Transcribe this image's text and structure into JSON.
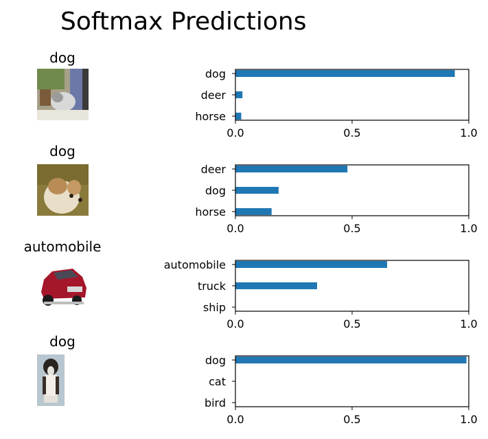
{
  "title": "Softmax Predictions",
  "chart_data": [
    {
      "type": "bar",
      "orientation": "horizontal",
      "image_label": "dog",
      "image_description": "dog-photo",
      "categories": [
        "dog",
        "deer",
        "horse"
      ],
      "values": [
        0.94,
        0.03,
        0.025
      ],
      "xlim": [
        0,
        1.0
      ],
      "xticks": [
        "0.0",
        "0.5",
        "1.0"
      ],
      "bar_color": "#1f77b4",
      "grid": false
    },
    {
      "type": "bar",
      "orientation": "horizontal",
      "image_label": "dog",
      "image_description": "dog-photo",
      "categories": [
        "deer",
        "dog",
        "horse"
      ],
      "values": [
        0.48,
        0.185,
        0.155
      ],
      "xlim": [
        0,
        1.0
      ],
      "xticks": [
        "0.0",
        "0.5",
        "1.0"
      ],
      "bar_color": "#1f77b4",
      "grid": false
    },
    {
      "type": "bar",
      "orientation": "horizontal",
      "image_label": "automobile",
      "image_description": "car-photo",
      "categories": [
        "automobile",
        "truck",
        "ship"
      ],
      "values": [
        0.65,
        0.35,
        0.0
      ],
      "xlim": [
        0,
        1.0
      ],
      "xticks": [
        "0.0",
        "0.5",
        "1.0"
      ],
      "bar_color": "#1f77b4",
      "grid": false
    },
    {
      "type": "bar",
      "orientation": "horizontal",
      "image_label": "dog",
      "image_description": "dog-photo",
      "categories": [
        "dog",
        "cat",
        "bird"
      ],
      "values": [
        0.99,
        0.0,
        0.0
      ],
      "xlim": [
        0,
        1.0
      ],
      "xticks": [
        "0.0",
        "0.5",
        "1.0"
      ],
      "bar_color": "#1f77b4",
      "grid": false
    }
  ]
}
